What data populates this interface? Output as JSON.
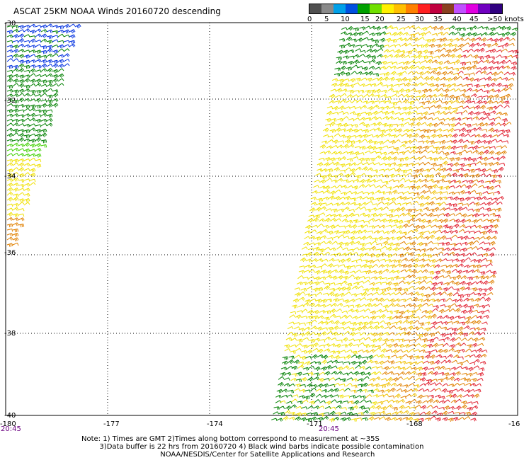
{
  "title": "ASCAT 25KM NOAA Winds 20160720 descending",
  "legend": {
    "colors": [
      "#505050",
      "#8a8a8a",
      "#00a0e8",
      "#0050e0",
      "#00a000",
      "#70e000",
      "#fff000",
      "#ffc000",
      "#ff8000",
      "#ff2020",
      "#c00040",
      "#8a4020",
      "#c050ff",
      "#e000e0",
      "#7000c0",
      "#300080"
    ],
    "labels": [
      "0",
      "5",
      "10",
      "15",
      "20",
      "25",
      "30",
      "35",
      "40",
      "45",
      ">50 knots"
    ]
  },
  "map": {
    "lat_labels": [
      "-30",
      "-32",
      "-34",
      "-36",
      "-38",
      "-40"
    ],
    "lon_labels": [
      "-180",
      "-177",
      "-174",
      "-171",
      "-168",
      "-16"
    ],
    "time_labels": [
      "20:45",
      "20:45"
    ],
    "time_color": "#6a0080",
    "barb_colors": {
      "blue": "#0030e0",
      "green": "#008000",
      "lime": "#40d000",
      "yellow": "#f0e000",
      "gold": "#f0c000",
      "orange": "#e08000",
      "red": "#e02030"
    }
  },
  "notes": {
    "line1": "Note: 1) Times are GMT 2)Times along bottom correspond to measurement at ~35S",
    "line2": "        3)Data buffer is 22 hrs from 20160720 4) Black wind barbs indicate possible contamination",
    "line3": "                                   NOAA/NESDIS/Center for Satellite Applications and Research"
  }
}
